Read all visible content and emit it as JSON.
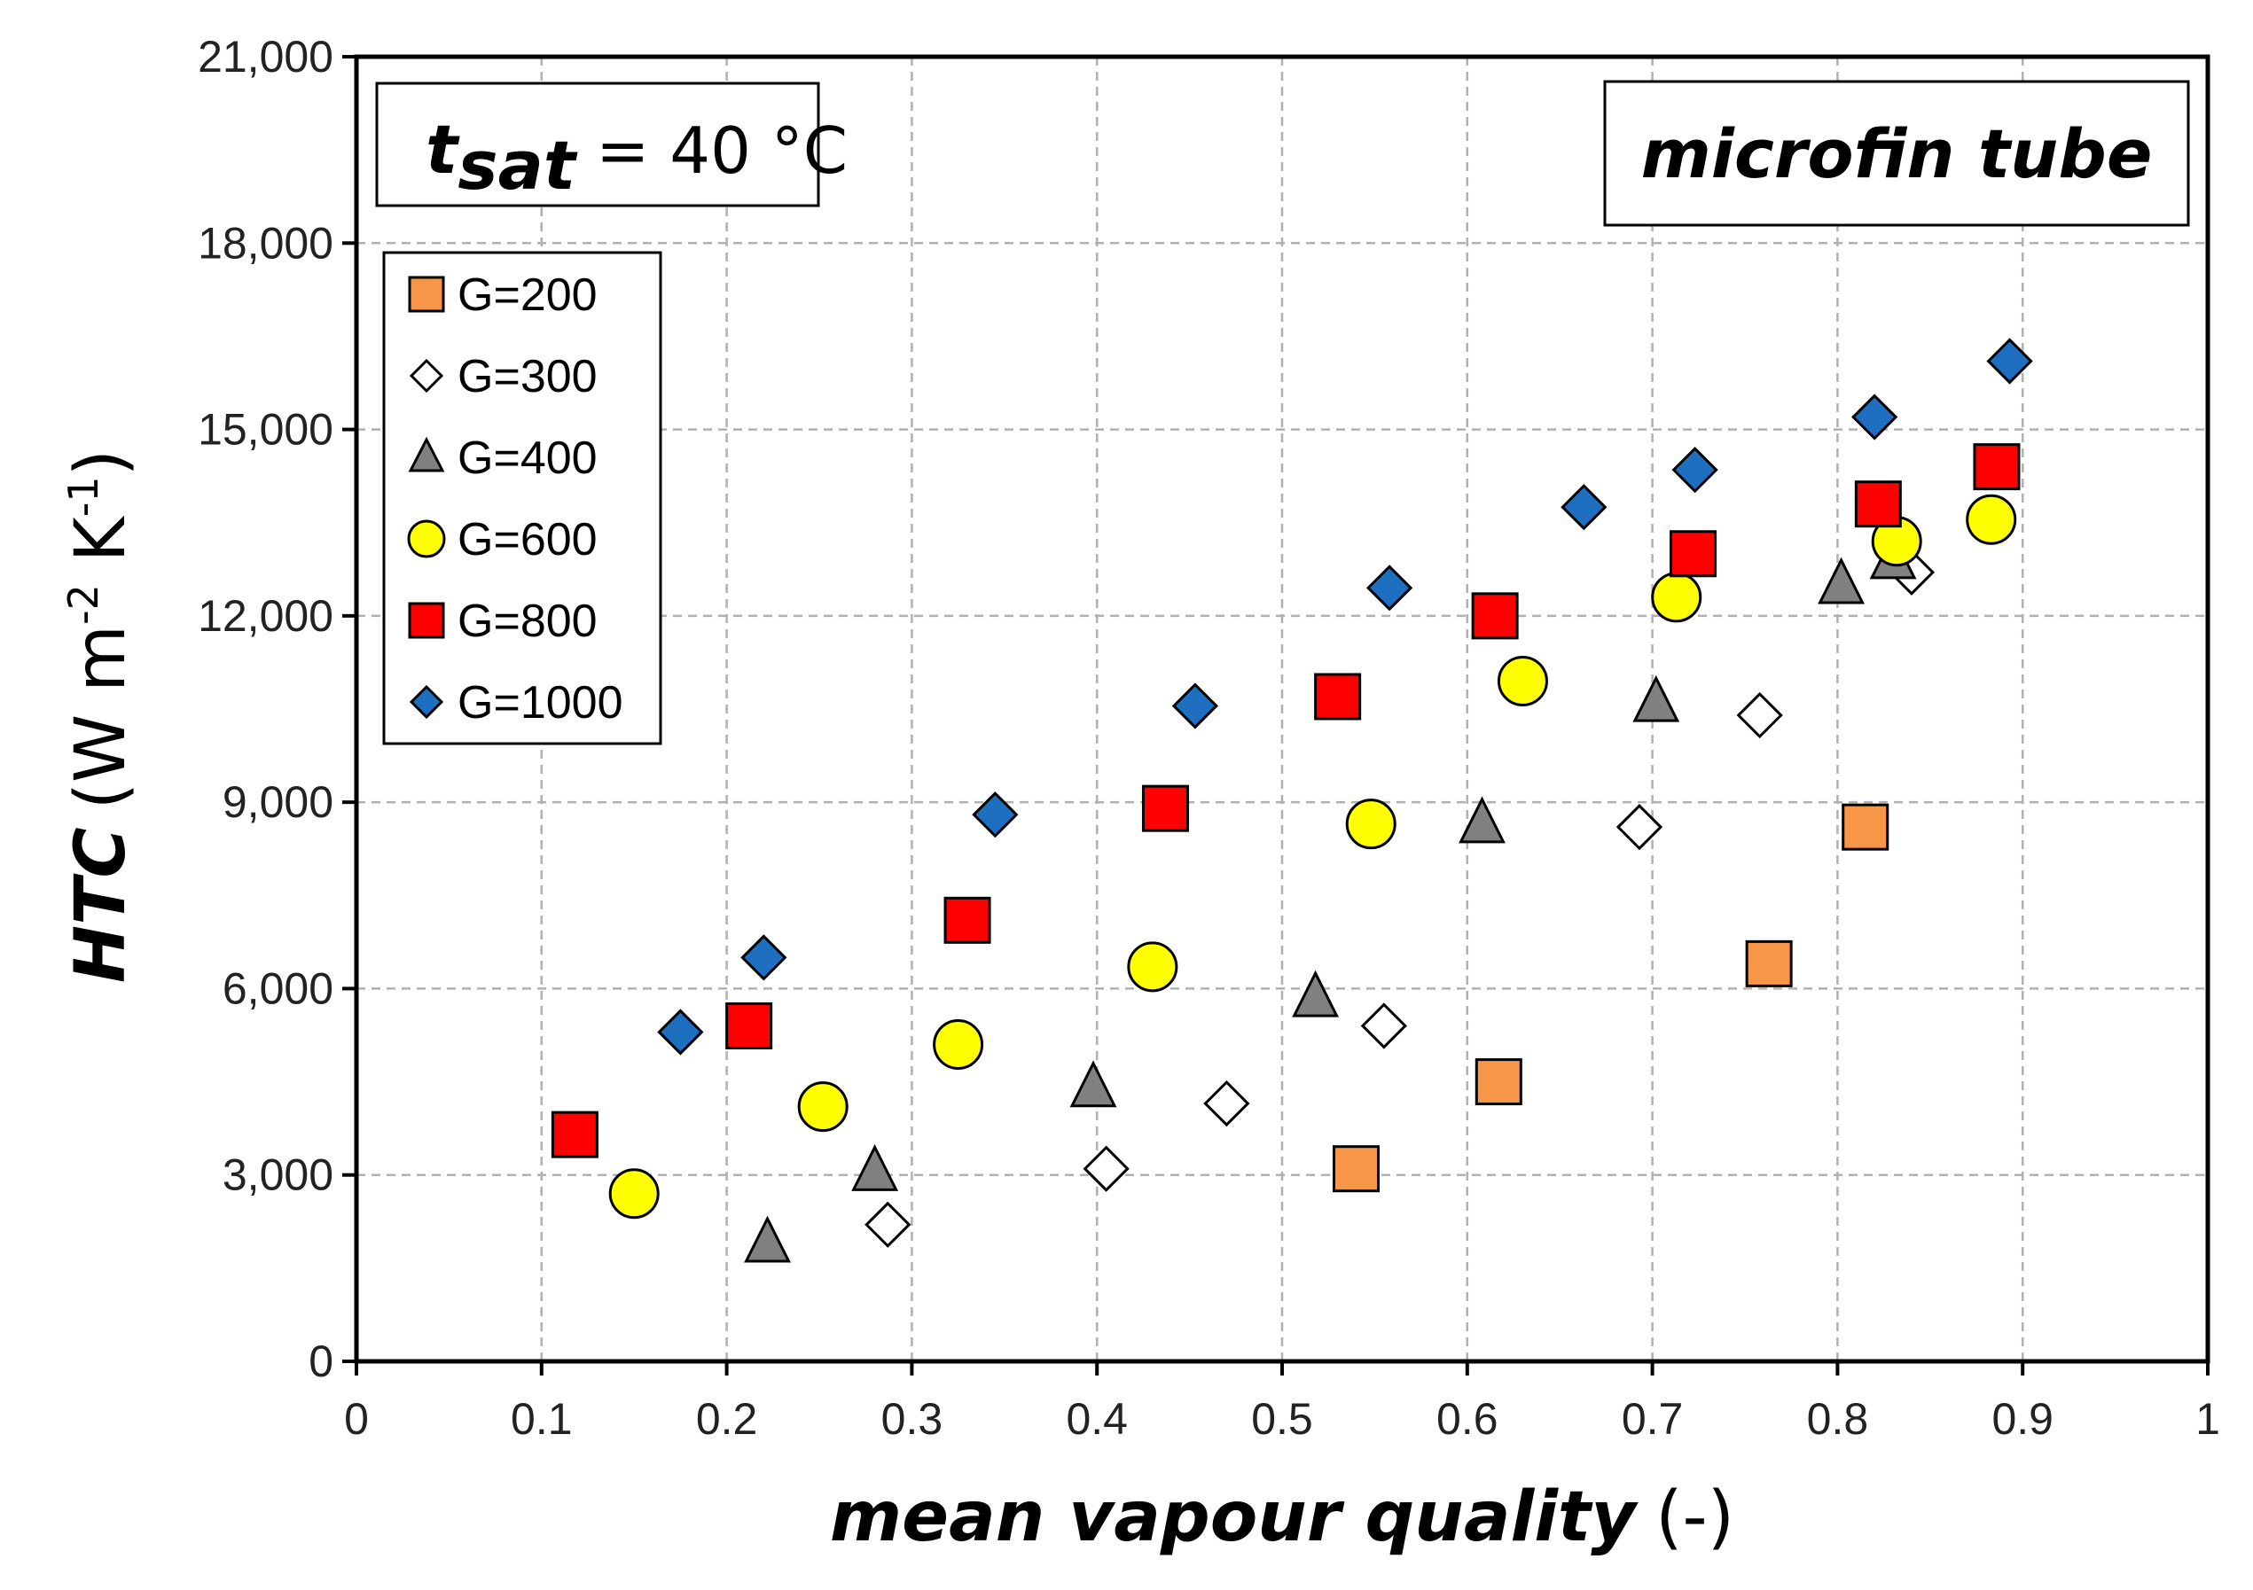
{
  "chart_data": {
    "type": "scatter",
    "title": "",
    "xlabel": "mean vapour quality",
    "xlabel_unit": "(-)",
    "ylabel": "HTC",
    "ylabel_unit_prefix": "(W m",
    "ylabel_exp1": "-2",
    "ylabel_unit_mid": " K",
    "ylabel_exp2": "-1",
    "ylabel_unit_suffix": ")",
    "xlim": [
      0,
      1
    ],
    "ylim": [
      0,
      21000
    ],
    "x_ticks": [
      0,
      0.1,
      0.2,
      0.3,
      0.4,
      0.5,
      0.6,
      0.7,
      0.8,
      0.9,
      1
    ],
    "x_tick_labels": [
      "0",
      "0.1",
      "0.2",
      "0.3",
      "0.4",
      "0.5",
      "0.6",
      "0.7",
      "0.8",
      "0.9",
      "1"
    ],
    "y_ticks": [
      0,
      3000,
      6000,
      9000,
      12000,
      15000,
      18000,
      21000
    ],
    "y_tick_labels": [
      "0",
      "3,000",
      "6,000",
      "9,000",
      "12,000",
      "15,000",
      "18,000",
      "21,000"
    ],
    "grid": true,
    "legend_position": "top-left",
    "annotations": {
      "tsat_symbol": "t",
      "tsat_sub": "sat",
      "tsat_value": " = 40 °C",
      "tube_label": "microfin tube"
    },
    "series": [
      {
        "name": "G=200",
        "marker": "square",
        "color": "#F79646",
        "points": [
          [
            0.54,
            3100
          ],
          [
            0.617,
            4500
          ],
          [
            0.763,
            6400
          ],
          [
            0.815,
            8600
          ]
        ]
      },
      {
        "name": "G=300",
        "marker": "diamond",
        "color": "#FFFFFF",
        "points": [
          [
            0.287,
            2200
          ],
          [
            0.405,
            3100
          ],
          [
            0.47,
            4150
          ],
          [
            0.555,
            5400
          ],
          [
            0.693,
            8600
          ],
          [
            0.758,
            10400
          ],
          [
            0.84,
            12700
          ]
        ]
      },
      {
        "name": "G=400",
        "marker": "triangle",
        "color": "#808080",
        "points": [
          [
            0.222,
            1900
          ],
          [
            0.28,
            3050
          ],
          [
            0.398,
            4400
          ],
          [
            0.518,
            5850
          ],
          [
            0.608,
            8650
          ],
          [
            0.702,
            10600
          ],
          [
            0.802,
            12500
          ],
          [
            0.83,
            12900
          ]
        ]
      },
      {
        "name": "G=600",
        "marker": "circle",
        "color": "#FFFF00",
        "points": [
          [
            0.15,
            2700
          ],
          [
            0.252,
            4100
          ],
          [
            0.325,
            5100
          ],
          [
            0.43,
            6350
          ],
          [
            0.548,
            8650
          ],
          [
            0.63,
            10950
          ],
          [
            0.713,
            12300
          ],
          [
            0.832,
            13200
          ],
          [
            0.883,
            13550
          ]
        ]
      },
      {
        "name": "G=800",
        "marker": "square",
        "color": "#FF0000",
        "points": [
          [
            0.118,
            3650
          ],
          [
            0.212,
            5400
          ],
          [
            0.33,
            7100
          ],
          [
            0.437,
            8900
          ],
          [
            0.53,
            10700
          ],
          [
            0.615,
            12000
          ],
          [
            0.722,
            13000
          ],
          [
            0.822,
            13800
          ],
          [
            0.886,
            14400
          ]
        ]
      },
      {
        "name": "G=1000",
        "marker": "diamond",
        "color": "#1F6FC1",
        "points": [
          [
            0.175,
            5300
          ],
          [
            0.22,
            6500
          ],
          [
            0.345,
            8800
          ],
          [
            0.453,
            10550
          ],
          [
            0.558,
            12450
          ],
          [
            0.663,
            13750
          ],
          [
            0.723,
            14350
          ],
          [
            0.82,
            15200
          ],
          [
            0.893,
            16100
          ]
        ]
      }
    ]
  }
}
